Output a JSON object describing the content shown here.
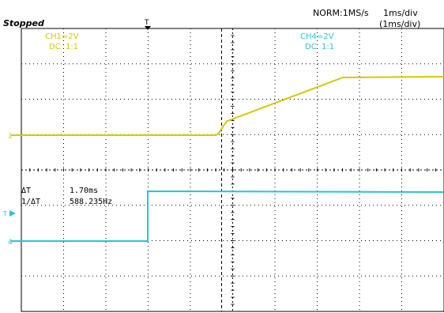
{
  "status": "Stopped",
  "acquisition": "NORM:1MS/s",
  "timebase": {
    "line1": "1ms/div",
    "line2": "(1ms/div)"
  },
  "trigger_marker": "T",
  "colors": {
    "ch1": "#d4c800",
    "ch4": "#26c6d0",
    "grid": "#000000",
    "cursor": "#000000",
    "background": "#ffffff"
  },
  "channels": [
    {
      "id": "ch1",
      "scale": "CH1=2V",
      "coupling": "DC  1:1",
      "marker": "1",
      "color": "#d4c800"
    },
    {
      "id": "ch4",
      "scale": "CH4=2V",
      "coupling": "DC  1:1",
      "marker": "4",
      "color": "#26c6d0"
    }
  ],
  "measurements": {
    "delta_t_label": "ΔT",
    "delta_t_value": "1.70ms",
    "inv_delta_t_label": "1/ΔT",
    "inv_delta_t_value": "588.235Hz"
  }
}
